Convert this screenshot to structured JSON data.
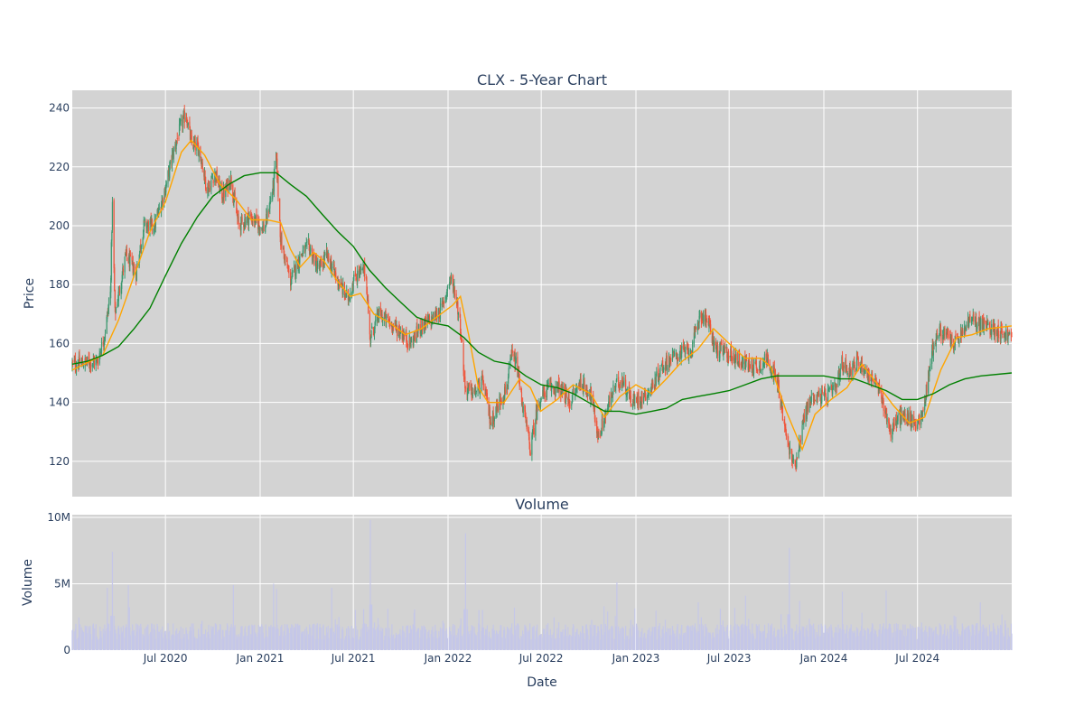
{
  "chart_data": [
    {
      "type": "candlestick",
      "title": "CLX - 5-Year Chart",
      "xlabel": "",
      "ylabel": "Price",
      "ylim": [
        108,
        246
      ],
      "yticks": [
        120,
        140,
        160,
        180,
        200,
        220,
        240
      ],
      "grid": true,
      "legend": "none",
      "x_range": [
        "2020-01-02",
        "2024-12-31"
      ],
      "increasing_color": "#3d9970",
      "decreasing_color": "#ef553b",
      "price_path": [
        [
          "2020-01-02",
          153
        ],
        [
          "2020-02-20",
          154
        ],
        [
          "2020-03-05",
          163
        ],
        [
          "2020-03-16",
          177
        ],
        [
          "2020-03-20",
          207
        ],
        [
          "2020-03-25",
          170
        ],
        [
          "2020-04-15",
          190
        ],
        [
          "2020-05-05",
          184
        ],
        [
          "2020-05-20",
          200
        ],
        [
          "2020-06-10",
          200
        ],
        [
          "2020-06-30",
          212
        ],
        [
          "2020-07-15",
          224
        ],
        [
          "2020-07-31",
          234
        ],
        [
          "2020-08-10",
          238
        ],
        [
          "2020-08-20",
          228
        ],
        [
          "2020-09-05",
          226
        ],
        [
          "2020-09-20",
          212
        ],
        [
          "2020-10-05",
          218
        ],
        [
          "2020-10-20",
          210
        ],
        [
          "2020-11-05",
          216
        ],
        [
          "2020-11-20",
          200
        ],
        [
          "2020-12-10",
          203
        ],
        [
          "2021-01-10",
          199
        ],
        [
          "2021-01-27",
          214
        ],
        [
          "2021-02-01",
          224
        ],
        [
          "2021-02-10",
          195
        ],
        [
          "2021-03-01",
          181
        ],
        [
          "2021-03-20",
          190
        ],
        [
          "2021-04-05",
          193
        ],
        [
          "2021-04-25",
          185
        ],
        [
          "2021-05-10",
          190
        ],
        [
          "2021-05-30",
          182
        ],
        [
          "2021-06-20",
          175
        ],
        [
          "2021-07-05",
          183
        ],
        [
          "2021-07-25",
          185
        ],
        [
          "2021-08-02",
          162
        ],
        [
          "2021-08-20",
          170
        ],
        [
          "2021-09-10",
          167
        ],
        [
          "2021-10-01",
          164
        ],
        [
          "2021-10-20",
          160
        ],
        [
          "2021-11-10",
          166
        ],
        [
          "2021-12-01",
          168
        ],
        [
          "2021-12-20",
          172
        ],
        [
          "2022-01-05",
          182
        ],
        [
          "2022-01-15",
          178
        ],
        [
          "2022-01-25",
          166
        ],
        [
          "2022-02-03",
          145
        ],
        [
          "2022-02-20",
          143
        ],
        [
          "2022-03-10",
          147
        ],
        [
          "2022-03-25",
          133
        ],
        [
          "2022-04-10",
          140
        ],
        [
          "2022-04-25",
          145
        ],
        [
          "2022-05-05",
          156
        ],
        [
          "2022-05-15",
          152
        ],
        [
          "2022-05-25",
          140
        ],
        [
          "2022-06-10",
          124
        ],
        [
          "2022-06-25",
          140
        ],
        [
          "2022-07-15",
          145
        ],
        [
          "2022-08-05",
          145
        ],
        [
          "2022-08-25",
          140
        ],
        [
          "2022-09-15",
          147
        ],
        [
          "2022-10-05",
          143
        ],
        [
          "2022-10-20",
          128
        ],
        [
          "2022-11-05",
          137
        ],
        [
          "2022-11-20",
          145
        ],
        [
          "2022-12-05",
          148
        ],
        [
          "2022-12-25",
          140
        ],
        [
          "2023-01-15",
          142
        ],
        [
          "2023-02-01",
          145
        ],
        [
          "2023-02-20",
          152
        ],
        [
          "2023-03-10",
          155
        ],
        [
          "2023-04-01",
          157
        ],
        [
          "2023-04-20",
          158
        ],
        [
          "2023-05-05",
          170
        ],
        [
          "2023-05-20",
          168
        ],
        [
          "2023-06-05",
          158
        ],
        [
          "2023-06-25",
          157
        ],
        [
          "2023-07-15",
          155
        ],
        [
          "2023-08-05",
          153
        ],
        [
          "2023-08-25",
          152
        ],
        [
          "2023-09-15",
          155
        ],
        [
          "2023-10-05",
          145
        ],
        [
          "2023-10-20",
          128
        ],
        [
          "2023-11-05",
          118
        ],
        [
          "2023-11-12",
          124
        ],
        [
          "2023-11-25",
          136
        ],
        [
          "2023-12-10",
          142
        ],
        [
          "2024-01-05",
          142
        ],
        [
          "2024-01-25",
          145
        ],
        [
          "2024-02-05",
          153
        ],
        [
          "2024-02-20",
          151
        ],
        [
          "2024-03-10",
          154
        ],
        [
          "2024-03-25",
          150
        ],
        [
          "2024-04-10",
          147
        ],
        [
          "2024-04-25",
          140
        ],
        [
          "2024-05-10",
          130
        ],
        [
          "2024-05-25",
          135
        ],
        [
          "2024-06-10",
          135
        ],
        [
          "2024-06-25",
          133
        ],
        [
          "2024-07-10",
          135
        ],
        [
          "2024-07-30",
          158
        ],
        [
          "2024-08-10",
          164
        ],
        [
          "2024-08-25",
          163
        ],
        [
          "2024-09-10",
          160
        ],
        [
          "2024-09-25",
          163
        ],
        [
          "2024-10-10",
          168
        ],
        [
          "2024-11-10",
          166
        ],
        [
          "2024-12-10",
          164
        ],
        [
          "2024-12-31",
          162
        ]
      ],
      "overlays": [
        {
          "color": "orange",
          "points": [
            [
              "2020-01-02",
              151
            ],
            [
              "2020-03-01",
              156
            ],
            [
              "2020-04-01",
              168
            ],
            [
              "2020-05-01",
              183
            ],
            [
              "2020-06-01",
              198
            ],
            [
              "2020-07-01",
              208
            ],
            [
              "2020-08-01",
              225
            ],
            [
              "2020-08-20",
              229
            ],
            [
              "2020-09-15",
              224
            ],
            [
              "2020-10-15",
              214
            ],
            [
              "2020-11-15",
              209
            ],
            [
              "2020-12-15",
              202
            ],
            [
              "2021-01-15",
              202
            ],
            [
              "2021-02-10",
              201
            ],
            [
              "2021-03-01",
              192
            ],
            [
              "2021-03-20",
              186
            ],
            [
              "2021-04-15",
              191
            ],
            [
              "2021-05-05",
              188
            ],
            [
              "2021-06-01",
              181
            ],
            [
              "2021-06-25",
              176
            ],
            [
              "2021-07-15",
              177
            ],
            [
              "2021-08-10",
              170
            ],
            [
              "2021-09-10",
              167
            ],
            [
              "2021-10-10",
              163
            ],
            [
              "2021-11-10",
              165
            ],
            [
              "2021-12-10",
              169
            ],
            [
              "2022-01-10",
              173
            ],
            [
              "2022-01-25",
              176
            ],
            [
              "2022-02-10",
              163
            ],
            [
              "2022-03-01",
              145
            ],
            [
              "2022-03-20",
              140
            ],
            [
              "2022-04-20",
              140
            ],
            [
              "2022-05-20",
              148
            ],
            [
              "2022-06-10",
              145
            ],
            [
              "2022-06-30",
              137
            ],
            [
              "2022-08-01",
              141
            ],
            [
              "2022-09-01",
              146
            ],
            [
              "2022-10-05",
              143
            ],
            [
              "2022-11-01",
              135
            ],
            [
              "2022-12-01",
              142
            ],
            [
              "2023-01-01",
              146
            ],
            [
              "2023-02-01",
              143
            ],
            [
              "2023-03-01",
              148
            ],
            [
              "2023-04-01",
              154
            ],
            [
              "2023-05-01",
              158
            ],
            [
              "2023-06-01",
              165
            ],
            [
              "2023-07-01",
              160
            ],
            [
              "2023-08-01",
              155
            ],
            [
              "2023-09-01",
              155
            ],
            [
              "2023-09-20",
              152
            ],
            [
              "2023-10-20",
              137
            ],
            [
              "2023-11-20",
              124
            ],
            [
              "2023-12-15",
              136
            ],
            [
              "2024-01-15",
              141
            ],
            [
              "2024-02-15",
              145
            ],
            [
              "2024-03-15",
              153
            ],
            [
              "2024-04-15",
              146
            ],
            [
              "2024-05-15",
              139
            ],
            [
              "2024-06-15",
              133
            ],
            [
              "2024-07-15",
              135
            ],
            [
              "2024-08-15",
              151
            ],
            [
              "2024-09-15",
              162
            ],
            [
              "2024-10-15",
              163
            ],
            [
              "2024-11-15",
              165
            ],
            [
              "2024-12-31",
              166
            ]
          ]
        },
        {
          "color": "green",
          "points": [
            [
              "2020-01-02",
              153
            ],
            [
              "2020-02-01",
              154
            ],
            [
              "2020-03-01",
              156
            ],
            [
              "2020-04-01",
              159
            ],
            [
              "2020-05-01",
              165
            ],
            [
              "2020-06-01",
              172
            ],
            [
              "2020-07-01",
              183
            ],
            [
              "2020-08-01",
              194
            ],
            [
              "2020-09-01",
              203
            ],
            [
              "2020-10-01",
              210
            ],
            [
              "2020-11-01",
              214
            ],
            [
              "2020-12-01",
              217
            ],
            [
              "2021-01-01",
              218
            ],
            [
              "2021-02-01",
              218
            ],
            [
              "2021-03-01",
              214
            ],
            [
              "2021-04-01",
              210
            ],
            [
              "2021-05-01",
              204
            ],
            [
              "2021-06-01",
              198
            ],
            [
              "2021-07-01",
              193
            ],
            [
              "2021-08-01",
              185
            ],
            [
              "2021-09-01",
              179
            ],
            [
              "2021-10-01",
              174
            ],
            [
              "2021-11-01",
              169
            ],
            [
              "2021-12-01",
              167
            ],
            [
              "2022-01-01",
              166
            ],
            [
              "2022-02-01",
              162
            ],
            [
              "2022-03-01",
              157
            ],
            [
              "2022-04-01",
              154
            ],
            [
              "2022-05-01",
              153
            ],
            [
              "2022-06-01",
              149
            ],
            [
              "2022-07-01",
              146
            ],
            [
              "2022-08-01",
              145
            ],
            [
              "2022-09-01",
              143
            ],
            [
              "2022-10-01",
              140
            ],
            [
              "2022-11-01",
              137
            ],
            [
              "2022-12-01",
              137
            ],
            [
              "2023-01-01",
              136
            ],
            [
              "2023-02-01",
              137
            ],
            [
              "2023-03-01",
              138
            ],
            [
              "2023-04-01",
              141
            ],
            [
              "2023-05-01",
              142
            ],
            [
              "2023-06-01",
              143
            ],
            [
              "2023-07-01",
              144
            ],
            [
              "2023-08-01",
              146
            ],
            [
              "2023-09-01",
              148
            ],
            [
              "2023-10-01",
              149
            ],
            [
              "2023-11-01",
              149
            ],
            [
              "2023-12-01",
              149
            ],
            [
              "2024-01-01",
              149
            ],
            [
              "2024-02-01",
              148
            ],
            [
              "2024-03-01",
              148
            ],
            [
              "2024-04-01",
              146
            ],
            [
              "2024-05-01",
              144
            ],
            [
              "2024-06-01",
              141
            ],
            [
              "2024-07-01",
              141
            ],
            [
              "2024-08-01",
              143
            ],
            [
              "2024-09-01",
              146
            ],
            [
              "2024-10-01",
              148
            ],
            [
              "2024-11-01",
              149
            ],
            [
              "2024-12-31",
              150
            ]
          ]
        }
      ]
    },
    {
      "type": "bar",
      "title": "Volume",
      "xlabel": "Date",
      "ylabel": "Volume",
      "ylim": [
        0,
        10200000
      ],
      "yticks": [
        0,
        5000000,
        10000000
      ],
      "ytick_labels": [
        "0",
        "5M",
        "10M"
      ],
      "xticks": [
        "2020-07-01",
        "2021-01-01",
        "2021-07-01",
        "2022-01-01",
        "2022-07-01",
        "2023-01-01",
        "2023-07-01",
        "2024-01-01",
        "2024-07-01"
      ],
      "xtick_labels": [
        "Jul 2020",
        "Jan 2021",
        "Jul 2021",
        "Jan 2022",
        "Jul 2022",
        "Jan 2023",
        "Jul 2023",
        "Jan 2024",
        "Jul 2024"
      ],
      "bar_color": "#c5c7e8",
      "base_level": 1400000,
      "spikes": [
        [
          "2020-03-10",
          4700000
        ],
        [
          "2020-03-20",
          7400000
        ],
        [
          "2020-04-20",
          4900000
        ],
        [
          "2020-11-10",
          4900000
        ],
        [
          "2021-01-27",
          5000000
        ],
        [
          "2021-02-02",
          4600000
        ],
        [
          "2021-05-20",
          4700000
        ],
        [
          "2021-08-03",
          9800000
        ],
        [
          "2022-02-04",
          8800000
        ],
        [
          "2022-05-10",
          3200000
        ],
        [
          "2022-10-31",
          3300000
        ],
        [
          "2022-11-25",
          5100000
        ],
        [
          "2023-02-05",
          5000000
        ],
        [
          "2023-05-02",
          3600000
        ],
        [
          "2023-08-02",
          4100000
        ],
        [
          "2023-10-10",
          2700000
        ],
        [
          "2023-10-26",
          7700000
        ],
        [
          "2023-11-15",
          3700000
        ],
        [
          "2024-01-20",
          2500000
        ],
        [
          "2024-02-06",
          4400000
        ],
        [
          "2024-05-01",
          4500000
        ],
        [
          "2024-06-15",
          4600000
        ],
        [
          "2024-09-10",
          2600000
        ],
        [
          "2024-10-31",
          3600000
        ]
      ]
    }
  ]
}
